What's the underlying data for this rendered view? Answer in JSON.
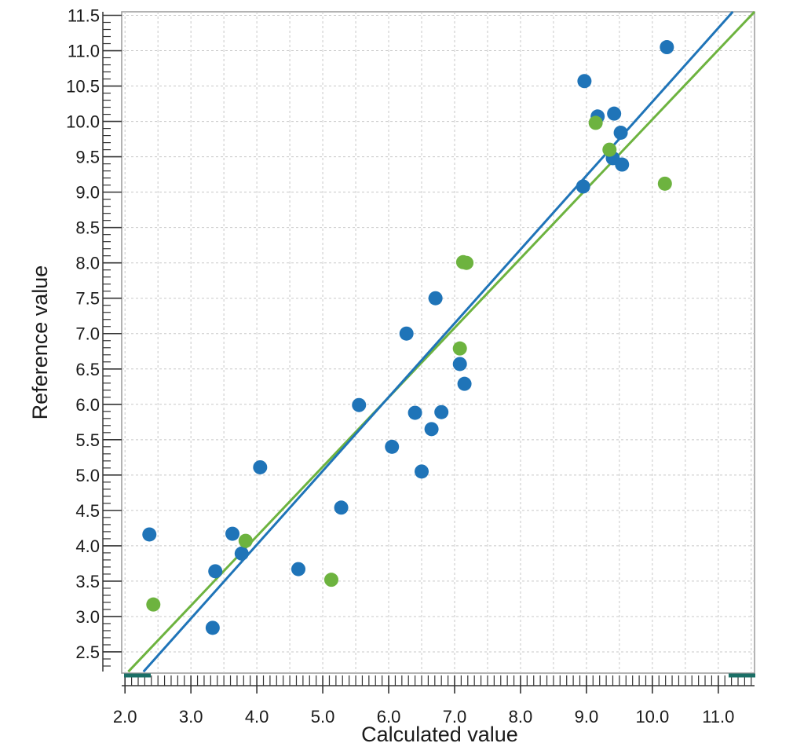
{
  "chart_data": {
    "type": "scatter",
    "title": "",
    "xlabel": "Calculated value",
    "ylabel": "Reference value",
    "xlim": [
      1.95,
      11.55
    ],
    "ylim": [
      2.2,
      11.55
    ],
    "x_ticks": [
      "2.0",
      "3.0",
      "4.0",
      "5.0",
      "6.0",
      "7.0",
      "8.0",
      "9.0",
      "10.0",
      "11.0"
    ],
    "y_ticks": [
      "2.5",
      "3.0",
      "3.5",
      "4.0",
      "4.5",
      "5.0",
      "5.5",
      "6.0",
      "6.5",
      "7.0",
      "7.5",
      "8.0",
      "8.5",
      "9.0",
      "9.5",
      "10.0",
      "10.5",
      "11.0",
      "11.5"
    ],
    "grid": true,
    "legend": "none",
    "series": [
      {
        "color": "#1f74b8",
        "points": [
          [
            2.37,
            4.16
          ],
          [
            3.33,
            2.84
          ],
          [
            3.37,
            3.64
          ],
          [
            3.63,
            4.17
          ],
          [
            3.77,
            3.89
          ],
          [
            4.05,
            5.11
          ],
          [
            4.63,
            3.67
          ],
          [
            5.28,
            4.54
          ],
          [
            5.55,
            5.99
          ],
          [
            6.05,
            5.4
          ],
          [
            6.27,
            7.0
          ],
          [
            6.4,
            5.88
          ],
          [
            6.5,
            5.05
          ],
          [
            6.65,
            5.65
          ],
          [
            6.71,
            7.5
          ],
          [
            6.8,
            5.89
          ],
          [
            7.08,
            6.57
          ],
          [
            7.15,
            6.29
          ],
          [
            8.95,
            9.08
          ],
          [
            8.97,
            10.57
          ],
          [
            9.17,
            10.07
          ],
          [
            9.4,
            9.48
          ],
          [
            9.42,
            10.11
          ],
          [
            9.52,
            9.84
          ],
          [
            9.54,
            9.39
          ],
          [
            10.22,
            11.05
          ]
        ],
        "fit_line": [
          [
            2.28,
            2.22
          ],
          [
            11.22,
            11.55
          ]
        ]
      },
      {
        "color": "#6db33f",
        "points": [
          [
            2.43,
            3.17
          ],
          [
            3.83,
            4.07
          ],
          [
            5.13,
            3.52
          ],
          [
            7.08,
            6.79
          ],
          [
            7.13,
            8.01
          ],
          [
            7.18,
            8.0
          ],
          [
            9.14,
            9.98
          ],
          [
            9.35,
            9.6
          ],
          [
            10.19,
            9.12
          ]
        ],
        "fit_line": [
          [
            2.05,
            2.22
          ],
          [
            11.55,
            11.55
          ]
        ]
      }
    ]
  }
}
